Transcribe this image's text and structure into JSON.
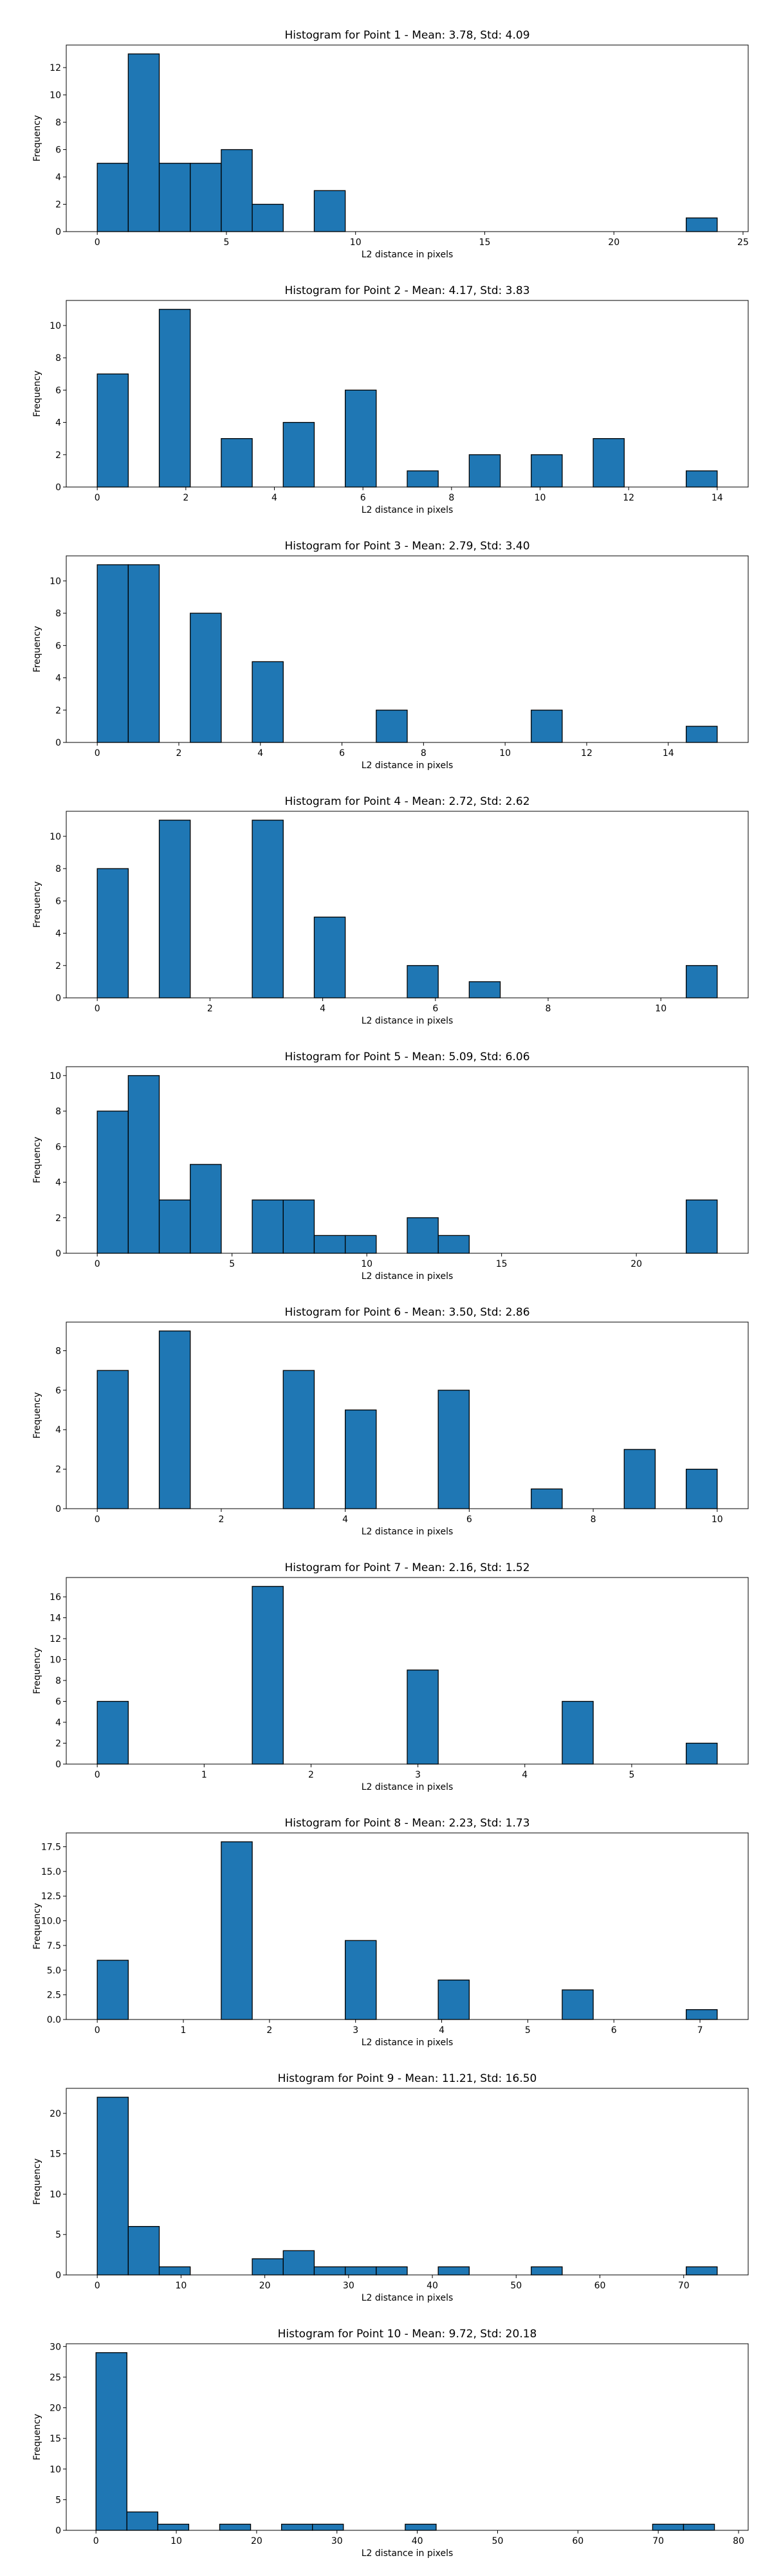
{
  "chart_data": [
    {
      "type": "bar",
      "title": "Histogram for Point 1 - Mean: 3.78, Std: 4.09",
      "xlabel": "L2 distance in pixels",
      "ylabel": "Frequency",
      "xlim": [
        -1.2,
        25.2
      ],
      "ylim": [
        0,
        13.65
      ],
      "xticks": [
        0,
        5,
        10,
        15,
        20,
        25
      ],
      "yticks": [
        0,
        2,
        4,
        6,
        8,
        10,
        12
      ],
      "bin_edges": [
        0,
        1.2,
        2.4,
        3.6,
        4.8,
        6.0,
        7.2,
        8.4,
        9.6,
        10.8,
        12.0,
        13.2,
        14.4,
        15.6,
        16.8,
        18.0,
        19.2,
        20.4,
        21.6,
        22.8,
        24.0
      ],
      "counts": [
        5,
        13,
        5,
        5,
        6,
        2,
        0,
        3,
        0,
        0,
        0,
        0,
        0,
        0,
        0,
        0,
        0,
        0,
        0,
        1
      ]
    },
    {
      "type": "bar",
      "title": "Histogram for Point 2 - Mean: 4.17, Std: 3.83",
      "xlabel": "L2 distance in pixels",
      "ylabel": "Frequency",
      "xlim": [
        -0.7,
        14.7
      ],
      "ylim": [
        0,
        11.55
      ],
      "xticks": [
        0,
        2,
        4,
        6,
        8,
        10,
        12,
        14
      ],
      "yticks": [
        0,
        2,
        4,
        6,
        8,
        10
      ],
      "bin_edges": [
        0,
        0.7,
        1.4,
        2.1,
        2.8,
        3.5,
        4.2,
        4.9,
        5.6,
        6.3,
        7.0,
        7.7,
        8.4,
        9.1,
        9.8,
        10.5,
        11.2,
        11.9,
        12.6,
        13.3,
        14.0
      ],
      "counts": [
        7,
        0,
        11,
        0,
        3,
        0,
        4,
        0,
        6,
        0,
        1,
        0,
        2,
        0,
        2,
        0,
        3,
        0,
        0,
        1
      ]
    },
    {
      "type": "bar",
      "title": "Histogram for Point 3 - Mean: 2.79, Std: 3.40",
      "xlabel": "L2 distance in pixels",
      "ylabel": "Frequency",
      "xlim": [
        -0.76,
        15.96
      ],
      "ylim": [
        0,
        11.55
      ],
      "xticks": [
        0,
        2,
        4,
        6,
        8,
        10,
        12,
        14
      ],
      "yticks": [
        0,
        2,
        4,
        6,
        8,
        10
      ],
      "bin_edges": [
        0,
        0.76,
        1.52,
        2.28,
        3.04,
        3.8,
        4.56,
        5.32,
        6.08,
        6.84,
        7.6,
        8.36,
        9.12,
        9.88,
        10.64,
        11.4,
        12.16,
        12.92,
        13.68,
        14.44,
        15.2
      ],
      "counts": [
        11,
        11,
        0,
        8,
        0,
        5,
        0,
        0,
        0,
        2,
        0,
        0,
        0,
        0,
        2,
        0,
        0,
        0,
        0,
        1
      ]
    },
    {
      "type": "bar",
      "title": "Histogram for Point 4 - Mean: 2.72, Std: 2.62",
      "xlabel": "L2 distance in pixels",
      "ylabel": "Frequency",
      "xlim": [
        -0.55,
        11.55
      ],
      "ylim": [
        0,
        11.55
      ],
      "xticks": [
        0,
        2,
        4,
        6,
        8,
        10
      ],
      "yticks": [
        0,
        2,
        4,
        6,
        8,
        10
      ],
      "bin_edges": [
        0,
        0.55,
        1.1,
        1.65,
        2.2,
        2.75,
        3.3,
        3.85,
        4.4,
        4.95,
        5.5,
        6.05,
        6.6,
        7.15,
        7.7,
        8.25,
        8.8,
        9.35,
        9.9,
        10.45,
        11.0
      ],
      "counts": [
        8,
        0,
        11,
        0,
        0,
        11,
        0,
        5,
        0,
        0,
        2,
        0,
        1,
        0,
        0,
        0,
        0,
        0,
        0,
        2
      ]
    },
    {
      "type": "bar",
      "title": "Histogram for Point 5 - Mean: 5.09, Std: 6.06",
      "xlabel": "L2 distance in pixels",
      "ylabel": "Frequency",
      "xlim": [
        -1.15,
        24.15
      ],
      "ylim": [
        0,
        10.5
      ],
      "xticks": [
        0,
        5,
        10,
        15,
        20
      ],
      "yticks": [
        0,
        2,
        4,
        6,
        8,
        10
      ],
      "bin_edges": [
        0,
        1.15,
        2.3,
        3.45,
        4.6,
        5.75,
        6.9,
        8.05,
        9.2,
        10.35,
        11.5,
        12.65,
        13.8,
        14.95,
        16.1,
        17.25,
        18.4,
        19.55,
        20.7,
        21.85,
        23.0
      ],
      "counts": [
        8,
        10,
        3,
        5,
        0,
        3,
        3,
        1,
        1,
        0,
        2,
        1,
        0,
        0,
        0,
        0,
        0,
        0,
        0,
        3
      ]
    },
    {
      "type": "bar",
      "title": "Histogram for Point 6 - Mean: 3.50, Std: 2.86",
      "xlabel": "L2 distance in pixels",
      "ylabel": "Frequency",
      "xlim": [
        -0.5,
        10.5
      ],
      "ylim": [
        0,
        9.45
      ],
      "xticks": [
        0,
        2,
        4,
        6,
        8,
        10
      ],
      "yticks": [
        0,
        2,
        4,
        6,
        8
      ],
      "bin_edges": [
        0,
        0.5,
        1.0,
        1.5,
        2.0,
        2.5,
        3.0,
        3.5,
        4.0,
        4.5,
        5.0,
        5.5,
        6.0,
        6.5,
        7.0,
        7.5,
        8.0,
        8.5,
        9.0,
        9.5,
        10.0
      ],
      "counts": [
        7,
        0,
        9,
        0,
        0,
        0,
        7,
        0,
        5,
        0,
        0,
        6,
        0,
        0,
        1,
        0,
        0,
        3,
        0,
        2
      ]
    },
    {
      "type": "bar",
      "title": "Histogram for Point 7 - Mean: 2.16, Std: 1.52",
      "xlabel": "L2 distance in pixels",
      "ylabel": "Frequency",
      "xlim": [
        -0.29,
        6.09
      ],
      "ylim": [
        0,
        17.85
      ],
      "xticks": [
        0,
        1,
        2,
        3,
        4,
        5
      ],
      "yticks": [
        0,
        2,
        4,
        6,
        8,
        10,
        12,
        14,
        16
      ],
      "bin_edges": [
        0,
        0.29,
        0.58,
        0.87,
        1.16,
        1.45,
        1.74,
        2.03,
        2.32,
        2.61,
        2.9,
        3.19,
        3.48,
        3.77,
        4.06,
        4.35,
        4.64,
        4.93,
        5.22,
        5.51,
        5.8
      ],
      "counts": [
        6,
        0,
        0,
        0,
        0,
        17,
        0,
        0,
        0,
        0,
        9,
        0,
        0,
        0,
        0,
        6,
        0,
        0,
        0,
        2
      ]
    },
    {
      "type": "bar",
      "title": "Histogram for Point 8 - Mean: 2.23, Std: 1.73",
      "xlabel": "L2 distance in pixels",
      "ylabel": "Frequency",
      "xlim": [
        -0.36,
        7.56
      ],
      "ylim": [
        0,
        18.9
      ],
      "xticks": [
        0,
        1,
        2,
        3,
        4,
        5,
        6,
        7
      ],
      "yticks": [
        0.0,
        2.5,
        5.0,
        7.5,
        10.0,
        12.5,
        15.0,
        17.5
      ],
      "bin_edges": [
        0,
        0.36,
        0.72,
        1.08,
        1.44,
        1.8,
        2.16,
        2.52,
        2.88,
        3.24,
        3.6,
        3.96,
        4.32,
        4.68,
        5.04,
        5.4,
        5.76,
        6.12,
        6.48,
        6.84,
        7.2
      ],
      "counts": [
        6,
        0,
        0,
        0,
        18,
        0,
        0,
        0,
        8,
        0,
        0,
        4,
        0,
        0,
        0,
        3,
        0,
        0,
        0,
        1
      ]
    },
    {
      "type": "bar",
      "title": "Histogram for Point 9 - Mean: 11.21, Std: 16.50",
      "xlabel": "L2 distance in pixels",
      "ylabel": "Frequency",
      "xlim": [
        -3.7,
        77.7
      ],
      "ylim": [
        0,
        23.1
      ],
      "xticks": [
        0,
        10,
        20,
        30,
        40,
        50,
        60,
        70
      ],
      "yticks": [
        0,
        5,
        10,
        15,
        20
      ],
      "bin_edges": [
        0,
        3.7,
        7.4,
        11.1,
        14.8,
        18.5,
        22.2,
        25.9,
        29.6,
        33.3,
        37.0,
        40.7,
        44.4,
        48.1,
        51.8,
        55.5,
        59.2,
        62.9,
        66.6,
        70.3,
        74.0
      ],
      "counts": [
        22,
        6,
        1,
        0,
        0,
        2,
        3,
        1,
        1,
        1,
        0,
        1,
        0,
        0,
        1,
        0,
        0,
        0,
        0,
        1
      ]
    },
    {
      "type": "bar",
      "title": "Histogram for Point 10 - Mean: 9.72, Std: 20.18",
      "xlabel": "L2 distance in pixels",
      "ylabel": "Frequency",
      "xlim": [
        -3.7,
        81.2
      ],
      "ylim": [
        0,
        30.45
      ],
      "xticks": [
        0,
        10,
        20,
        30,
        40,
        50,
        60,
        70,
        80
      ],
      "yticks": [
        0,
        5,
        10,
        15,
        20,
        25,
        30
      ],
      "bin_edges": [
        0,
        3.85,
        7.7,
        11.55,
        15.4,
        19.25,
        23.1,
        26.95,
        30.8,
        34.65,
        38.5,
        42.35,
        46.2,
        50.05,
        53.9,
        57.75,
        61.6,
        65.45,
        69.3,
        73.15,
        77.0
      ],
      "counts": [
        29,
        3,
        1,
        0,
        1,
        0,
        1,
        1,
        0,
        0,
        1,
        0,
        0,
        0,
        0,
        0,
        0,
        0,
        1,
        1
      ]
    }
  ],
  "colors": {
    "bar_fill": "#1f77b4",
    "bar_edge": "#000000",
    "axes": "#000000",
    "background": "#ffffff"
  }
}
